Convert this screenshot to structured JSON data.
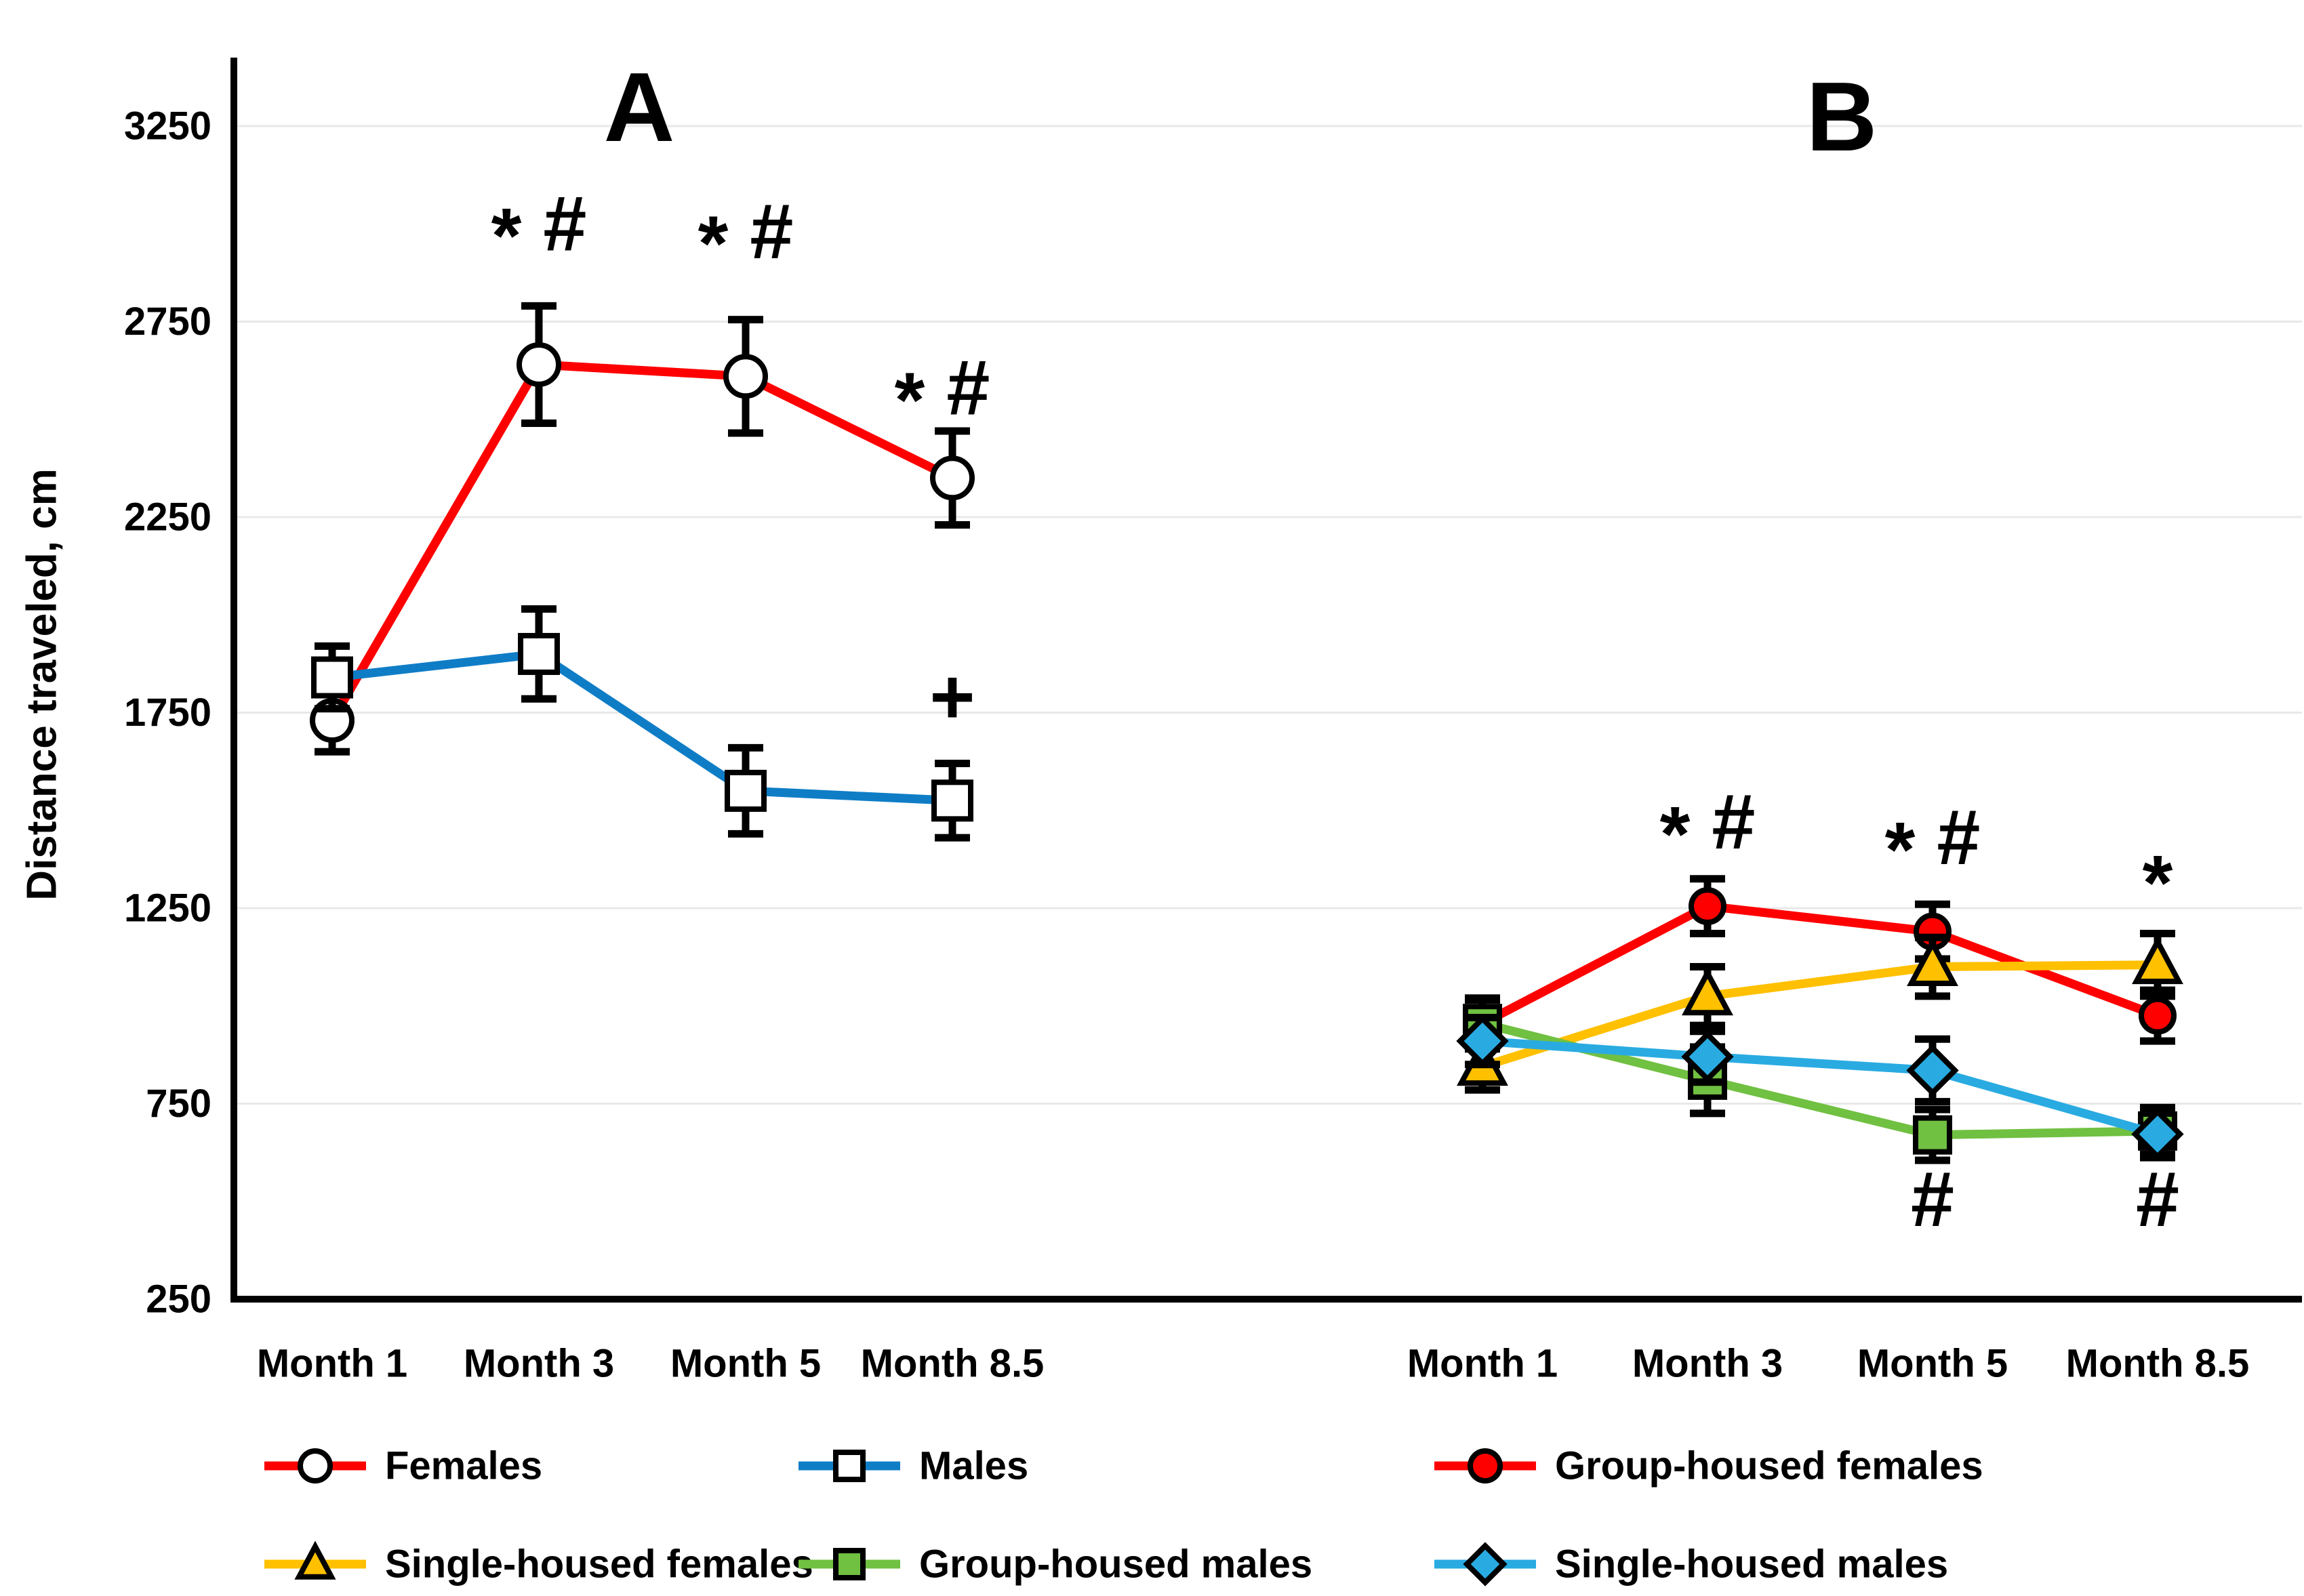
{
  "figure": {
    "ylabel": "Distance traveled, cm"
  },
  "chart_data": {
    "type": "line",
    "title": "",
    "ylabel": "Distance traveled, cm",
    "ylim": [
      250,
      3500
    ],
    "y_ticks": [
      3250,
      2750,
      2250,
      1750,
      1250,
      750,
      250
    ],
    "grid": true,
    "legend_position": "bottom",
    "categories": [
      "Month 1",
      "Month 3",
      "Month 5",
      "Month 8.5"
    ],
    "panels": [
      {
        "label": "A",
        "series": [
          {
            "name": "Females",
            "color": "#FF0000",
            "marker": "circle",
            "marker_fill": "#FFFFFF",
            "values": [
              1730,
              2640,
              2610,
              2350
            ],
            "errors": [
              80,
              150,
              145,
              120
            ]
          },
          {
            "name": "Males",
            "color": "#0F7DC6",
            "marker": "square",
            "marker_fill": "#FFFFFF",
            "values": [
              1840,
              1900,
              1550,
              1525
            ],
            "errors": [
              80,
              115,
              110,
              95
            ]
          }
        ],
        "annotations": [
          {
            "text": "* #",
            "category_index": 1,
            "value": 3000,
            "dx": 0
          },
          {
            "text": "* #",
            "category_index": 2,
            "value": 2980,
            "dx": 0
          },
          {
            "text": "* #",
            "category_index": 3,
            "value": 2580,
            "dx": -15
          },
          {
            "text": "+",
            "category_index": 3,
            "value": 1790,
            "dx": 0
          }
        ]
      },
      {
        "label": "B",
        "series": [
          {
            "name": "Group-housed females",
            "color": "#FF0000",
            "marker": "circle",
            "marker_fill": "#FF0000",
            "values": [
              955,
              1255,
              1190,
              975
            ],
            "errors": [
              60,
              70,
              70,
              65
            ]
          },
          {
            "name": "Single-housed females",
            "color": "#FFC000",
            "marker": "triangle",
            "marker_fill": "#FFC000",
            "values": [
              845,
              1025,
              1100,
              1105
            ],
            "errors": [
              60,
              75,
              75,
              80
            ]
          },
          {
            "name": "Group-housed males",
            "color": "#70C041",
            "marker": "square",
            "marker_fill": "#70C041",
            "values": [
              955,
              810,
              670,
              680
            ],
            "errors": [
              65,
              85,
              65,
              60
            ]
          },
          {
            "name": "Single-housed males",
            "color": "#29ABE2",
            "marker": "diamond",
            "marker_fill": "#29ABE2",
            "values": [
              910,
              870,
              835,
              672
            ],
            "errors": [
              60,
              65,
              80,
              60
            ]
          }
        ],
        "annotations": [
          {
            "text": "* #",
            "category_index": 1,
            "value": 1470,
            "dx": 0
          },
          {
            "text": "* #",
            "category_index": 2,
            "value": 1430,
            "dx": 0
          },
          {
            "text": "*",
            "category_index": 3,
            "value": 1345,
            "dx": 0
          },
          {
            "text": "#",
            "category_index": 2,
            "value": 505,
            "dx": 0
          },
          {
            "text": "#",
            "category_index": 3,
            "value": 505,
            "dx": 0
          }
        ]
      }
    ],
    "legend": {
      "rows": [
        [
          {
            "label": "Females",
            "color": "#FF0000",
            "marker": "circle",
            "marker_fill": "#FFFFFF"
          },
          {
            "label": "Males",
            "color": "#0F7DC6",
            "marker": "square",
            "marker_fill": "#FFFFFF"
          },
          {
            "label": "Group-housed females",
            "color": "#FF0000",
            "marker": "circle",
            "marker_fill": "#FF0000"
          }
        ],
        [
          {
            "label": "Single-housed females",
            "color": "#FFC000",
            "marker": "triangle",
            "marker_fill": "#FFC000"
          },
          {
            "label": "Group-housed males",
            "color": "#70C041",
            "marker": "square",
            "marker_fill": "#70C041"
          },
          {
            "label": "Single-housed males",
            "color": "#29ABE2",
            "marker": "diamond",
            "marker_fill": "#29ABE2"
          }
        ]
      ]
    },
    "colors": {
      "grid": "#E8E8E8",
      "axis": "#000000",
      "background": "#FFFFFF"
    }
  }
}
